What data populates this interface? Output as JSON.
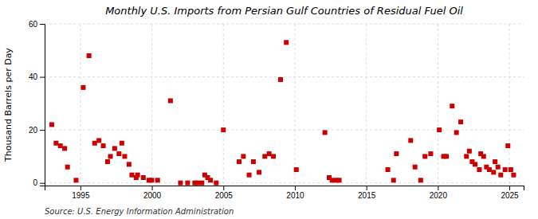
{
  "chart_data": {
    "type": "scatter",
    "title": "Monthly U.S. Imports from Persian Gulf Countries of Residual Fuel Oil",
    "ylabel": "Thousand Barrels per Day",
    "annotations": [
      "Source: U.S. Energy Information Administration"
    ],
    "color": "#cc0000",
    "marker": "square",
    "grid": true,
    "xlim": [
      1992.5,
      2026
    ],
    "ylim": [
      -1,
      60
    ],
    "xticks": [
      1995,
      2000,
      2005,
      2010,
      2015,
      2020,
      2025
    ],
    "yticks": [
      0,
      20,
      40,
      60
    ],
    "x": [
      1993.0,
      1993.3,
      1993.6,
      1993.9,
      1994.1,
      1994.7,
      1995.2,
      1995.6,
      1996.0,
      1996.3,
      1996.6,
      1996.9,
      1997.1,
      1997.4,
      1997.7,
      1997.9,
      1998.1,
      1998.4,
      1998.6,
      1998.9,
      1999.0,
      1999.4,
      1999.8,
      2000.0,
      2000.4,
      2001.3,
      2002.0,
      2002.5,
      2003.0,
      2003.2,
      2003.5,
      2003.7,
      2003.9,
      2004.1,
      2004.5,
      2005.0,
      2006.1,
      2006.4,
      2006.8,
      2007.1,
      2007.5,
      2007.9,
      2008.2,
      2008.5,
      2009.0,
      2009.4,
      2010.1,
      2012.1,
      2012.4,
      2012.6,
      2012.9,
      2013.1,
      2016.5,
      2016.9,
      2017.1,
      2018.1,
      2018.4,
      2018.8,
      2019.1,
      2019.5,
      2020.1,
      2020.4,
      2020.6,
      2021.0,
      2021.3,
      2021.6,
      2022.0,
      2022.2,
      2022.4,
      2022.6,
      2022.9,
      2023.0,
      2023.2,
      2023.4,
      2023.6,
      2023.9,
      2024.0,
      2024.2,
      2024.4,
      2024.7,
      2024.9,
      2025.1,
      2025.3
    ],
    "values": [
      22,
      15,
      14,
      13,
      6,
      1,
      36,
      48,
      15,
      16,
      14,
      8,
      10,
      13,
      11,
      15,
      10,
      7,
      3,
      2,
      3,
      2,
      1,
      1,
      1,
      31,
      0,
      0,
      0,
      0,
      0,
      3,
      2,
      1,
      0,
      20,
      8,
      10,
      3,
      8,
      4,
      10,
      11,
      10,
      39,
      53,
      5,
      19,
      2,
      1,
      1,
      1,
      5,
      1,
      11,
      16,
      6,
      1,
      10,
      11,
      20,
      10,
      10,
      29,
      19,
      23,
      10,
      12,
      8,
      7,
      5,
      11,
      10,
      6,
      5,
      4,
      8,
      6,
      3,
      5,
      14,
      5,
      3
    ]
  }
}
